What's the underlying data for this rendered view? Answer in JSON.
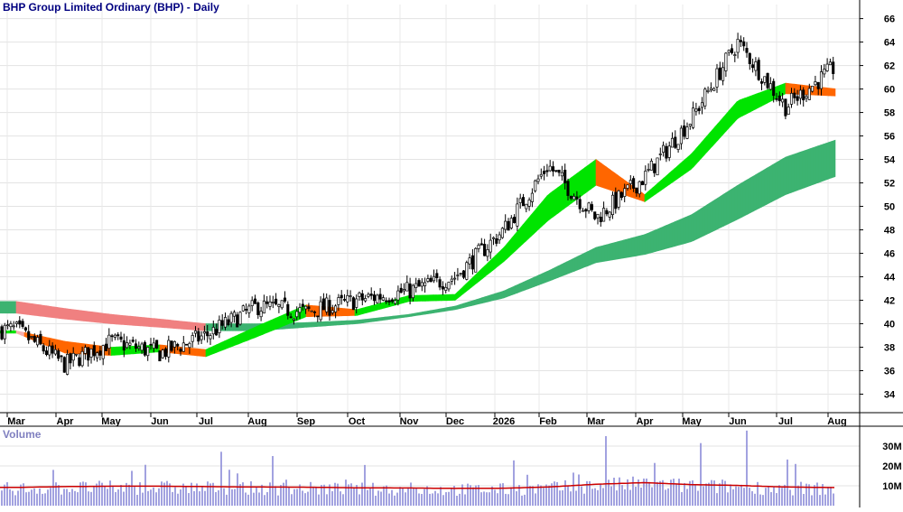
{
  "chart_data": [
    {
      "type": "candlestick",
      "title": "BHP Group Limited Ordinary (BHP) - Daily",
      "x_labels": [
        "Mar",
        "Apr",
        "May",
        "Jun",
        "Jul",
        "Aug",
        "Sep",
        "Oct",
        "Nov",
        "Dec",
        "2026",
        "Feb",
        "Mar",
        "Apr",
        "May",
        "Jun",
        "Jul",
        "Aug"
      ],
      "y_ticks": [
        34,
        36,
        38,
        40,
        42,
        44,
        46,
        48,
        50,
        52,
        54,
        56,
        58,
        60,
        62,
        64,
        66
      ],
      "ylim": [
        32.5,
        67.2
      ],
      "grid": true,
      "colors": {
        "candle": "#000000",
        "short_ribbon_up": "#00e400",
        "short_ribbon_down": "#ff6600",
        "short_ribbon_weak": "#f4b0b0",
        "long_ribbon_up": "#3cb371",
        "long_ribbon_down": "#f08080"
      },
      "close_series_approx": {
        "months": [
          "Mar",
          "Apr",
          "May",
          "Jun",
          "Jul",
          "Aug",
          "Sep",
          "Oct",
          "Nov",
          "Dec",
          "Jan",
          "Feb",
          "Mar",
          "Apr",
          "May",
          "Jun",
          "Jul",
          "Aug"
        ],
        "values": [
          39.5,
          36.5,
          38.5,
          37.5,
          39.0,
          41.5,
          41.0,
          42.0,
          42.8,
          44.0,
          48.0,
          53.5,
          49.0,
          52.5,
          57.5,
          64.0,
          58.5,
          62.0
        ]
      },
      "short_ribbon": {
        "months": [
          "Mar",
          "Apr",
          "May",
          "Jun",
          "Jul",
          "Aug",
          "Sep",
          "Oct",
          "Nov",
          "Dec",
          "Jan",
          "Feb",
          "Mar",
          "Apr",
          "May",
          "Jun",
          "Jul",
          "Aug"
        ],
        "upper": [
          39.4,
          38.5,
          38.0,
          38.2,
          37.8,
          39.8,
          41.6,
          41.2,
          42.4,
          42.5,
          46.5,
          51.0,
          54.0,
          51.0,
          54.5,
          59.0,
          60.5,
          60.0
        ],
        "lower": [
          39.2,
          37.5,
          37.3,
          37.6,
          37.2,
          38.9,
          40.6,
          40.7,
          41.9,
          42.0,
          45.3,
          48.8,
          51.8,
          50.4,
          53.2,
          57.5,
          59.6,
          59.4
        ]
      },
      "long_ribbon": {
        "months": [
          "Mar",
          "Apr",
          "May",
          "Jun",
          "Jul",
          "Aug",
          "Sep",
          "Oct",
          "Nov",
          "Dec",
          "Jan",
          "Feb",
          "Mar",
          "Apr",
          "May",
          "Jun",
          "Jul",
          "Aug"
        ],
        "upper": [
          41.9,
          41.3,
          40.8,
          40.4,
          40.0,
          40.0,
          40.1,
          40.3,
          40.8,
          41.5,
          42.8,
          44.5,
          46.5,
          47.6,
          49.3,
          51.8,
          54.2,
          55.7
        ],
        "lower": [
          40.9,
          40.4,
          40.0,
          39.7,
          39.4,
          39.4,
          39.7,
          40.0,
          40.6,
          41.2,
          42.2,
          43.6,
          45.2,
          45.9,
          47.0,
          48.9,
          51.0,
          52.6
        ]
      }
    },
    {
      "type": "bar",
      "title": "Volume",
      "y_ticks": [
        "10M",
        "20M",
        "30M"
      ],
      "y_tick_values": [
        10,
        20,
        30
      ],
      "ylim": [
        0,
        40
      ],
      "unit": "million shares",
      "typical_volume": 10,
      "average_line": {
        "months": [
          "Mar",
          "Apr",
          "May",
          "Jun",
          "Jul",
          "Aug",
          "Sep",
          "Oct",
          "Nov",
          "Dec",
          "Jan",
          "Feb",
          "Mar",
          "Apr",
          "May",
          "Jun",
          "Jul",
          "Aug"
        ],
        "values": [
          9.2,
          9.6,
          9.8,
          9.8,
          9.6,
          9.4,
          9.3,
          9.0,
          8.9,
          8.7,
          8.8,
          9.4,
          10.8,
          11.6,
          10.6,
          10.2,
          9.4,
          9.1
        ]
      },
      "spikes": [
        {
          "month": "Jun",
          "value": 37.8
        },
        {
          "month": "Mar",
          "value": 35.0
        },
        {
          "month": "May",
          "value": 31.5
        },
        {
          "month": "Jul",
          "value": 21.0
        },
        {
          "month": "Jan",
          "value": 22.8
        },
        {
          "month": "Apr",
          "value": 21.5
        },
        {
          "month": "Oct",
          "value": 20.5
        }
      ],
      "colors": {
        "bar": "#8c8cd8",
        "average": "#cc0000"
      }
    }
  ]
}
